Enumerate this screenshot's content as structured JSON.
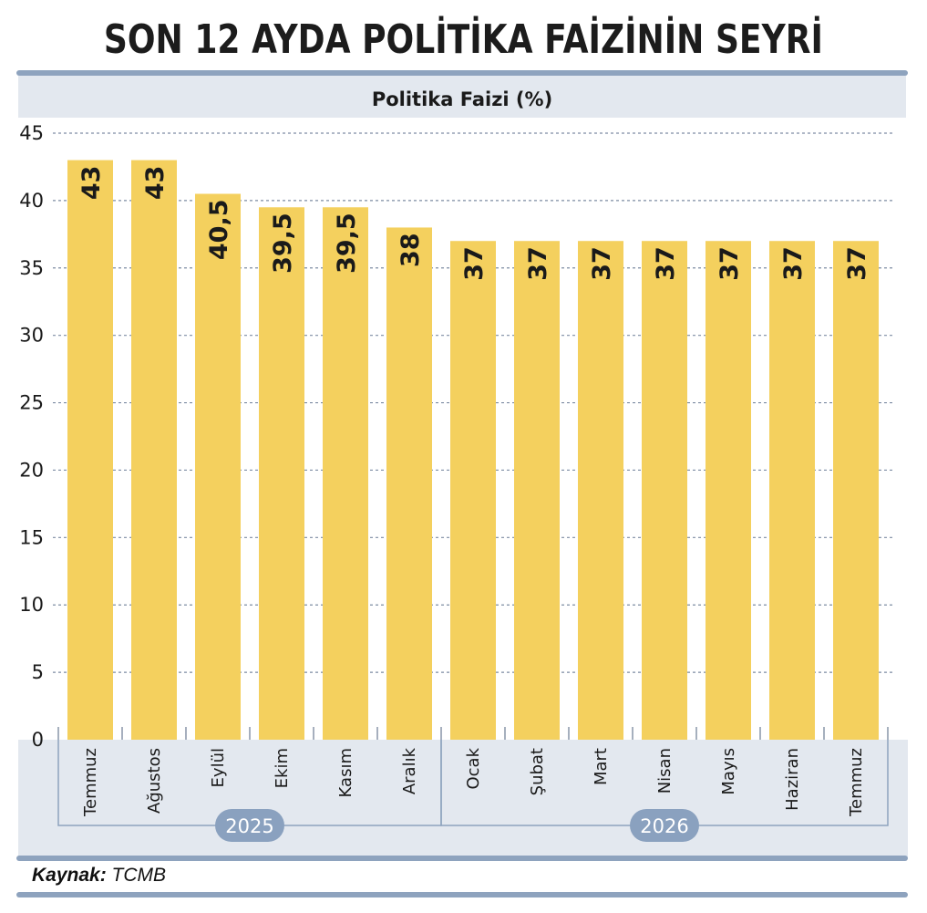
{
  "title": "SON 12 AYDA POLİTİKA FAİZİNİN SEYRİ",
  "source": {
    "label": "Kaynak:",
    "value": "TCMB"
  },
  "colors": {
    "bar": "#f4d05e",
    "band": "#e3e8ef",
    "frame": "#8ea3be",
    "grid": "#7d8ca3",
    "year_pill": "#8aa1bf"
  },
  "chart_data": {
    "type": "bar",
    "title": "Politika Faizi (%)",
    "categories": [
      "Temmuz",
      "Ağustos",
      "Eylül",
      "Ekim",
      "Kasım",
      "Aralık",
      "Ocak",
      "Şubat",
      "Mart",
      "Nisan",
      "Mayıs",
      "Haziran",
      "Temmuz"
    ],
    "values": [
      43,
      43,
      40.5,
      39.5,
      39.5,
      38,
      37,
      37,
      37,
      37,
      37,
      37,
      37
    ],
    "value_labels": [
      "43",
      "43",
      "40,5",
      "39,5",
      "39,5",
      "38",
      "37",
      "37",
      "37",
      "37",
      "37",
      "37",
      "37"
    ],
    "ylim": [
      0,
      45
    ],
    "yticks": [
      0,
      5,
      10,
      15,
      20,
      25,
      30,
      35,
      40,
      45
    ],
    "grid": true,
    "year_groups": [
      {
        "label": "2025",
        "count": 6
      },
      {
        "label": "2026",
        "count": 7
      }
    ]
  }
}
